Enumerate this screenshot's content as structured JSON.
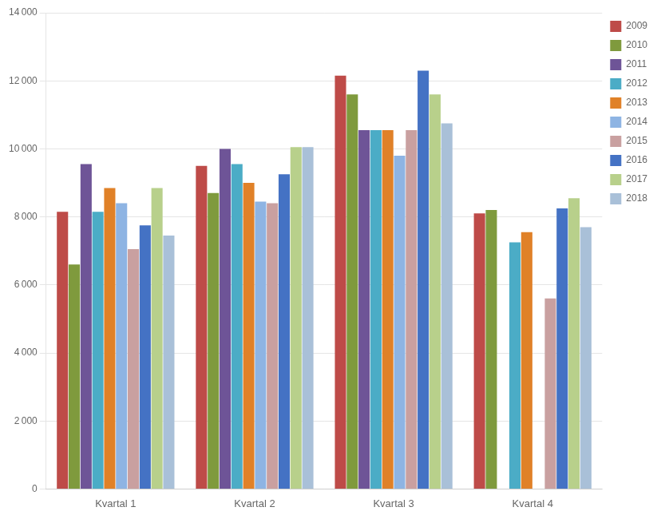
{
  "chart_data": {
    "type": "bar",
    "categories": [
      "Kvartal 1",
      "Kvartal 2",
      "Kvartal 3",
      "Kvartal 4"
    ],
    "series": [
      {
        "name": "2009",
        "color": "#BE4B48",
        "values": [
          8150,
          9500,
          12150,
          8100
        ]
      },
      {
        "name": "2010",
        "color": "#7F9A3D",
        "values": [
          6600,
          8700,
          11600,
          8200
        ]
      },
      {
        "name": "2011",
        "color": "#6E5497",
        "values": [
          9550,
          10000,
          10550,
          0
        ]
      },
      {
        "name": "2012",
        "color": "#4BACC6",
        "values": [
          8150,
          9550,
          10550,
          7250
        ]
      },
      {
        "name": "2013",
        "color": "#E08128",
        "values": [
          8850,
          9000,
          10550,
          7550
        ]
      },
      {
        "name": "2014",
        "color": "#8EB4E3",
        "values": [
          8400,
          8450,
          9800,
          0
        ]
      },
      {
        "name": "2015",
        "color": "#C9A0A0",
        "values": [
          7050,
          8400,
          10550,
          5600
        ]
      },
      {
        "name": "2016",
        "color": "#4472C4",
        "values": [
          7750,
          9250,
          12300,
          8250
        ]
      },
      {
        "name": "2017",
        "color": "#B8D08B",
        "values": [
          8850,
          10050,
          11600,
          8550
        ]
      },
      {
        "name": "2018",
        "color": "#A9C0D8",
        "values": [
          7450,
          10050,
          10750,
          7700
        ]
      }
    ],
    "ylim": [
      0,
      14000
    ],
    "yticks": [
      0,
      {
        "value": 2000,
        "label": "2 000"
      },
      {
        "value": 4000,
        "label": "4 000"
      },
      {
        "value": 6000,
        "label": "6 000"
      },
      {
        "value": 8000,
        "label": "8 000"
      },
      {
        "value": 10000,
        "label": "10 000"
      },
      {
        "value": 12000,
        "label": "12 000"
      },
      {
        "value": 14000,
        "label": "14 000"
      }
    ],
    "grid": true,
    "legend": "right"
  }
}
